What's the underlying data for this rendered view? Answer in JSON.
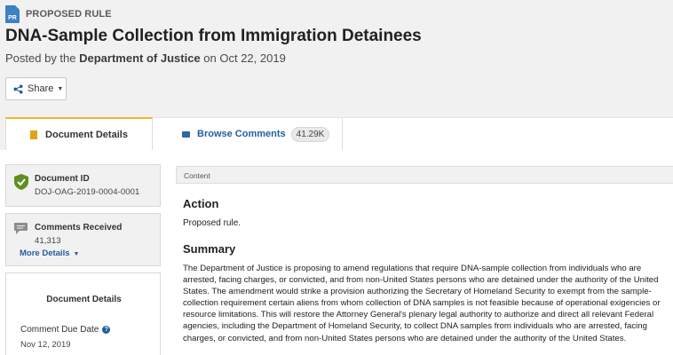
{
  "header": {
    "doc_type_icon_text": "PR",
    "doc_type": "PROPOSED RULE",
    "title": "DNA-Sample Collection from Immigration Detainees",
    "posted_prefix": "Posted by the",
    "agency": "Department of Justice",
    "posted_on": "on Oct 22, 2019",
    "share_label": "Share"
  },
  "tabs": {
    "details_label": "Document Details",
    "browse_label": "Browse Comments",
    "browse_count": "41.29K"
  },
  "sidebar": {
    "doc_id_title": "Document ID",
    "doc_id_value": "DOJ-OAG-2019-0004-0001",
    "comments_title": "Comments Received",
    "comments_value": "41,313",
    "more_details": "More Details",
    "details_box_title": "Document Details",
    "due_label": "Comment Due Date",
    "due_value": "Nov 12, 2019"
  },
  "content": {
    "header_label": "Content",
    "action_heading": "Action",
    "action_text": "Proposed rule.",
    "summary_heading": "Summary",
    "summary_text": "The Department of Justice is proposing to amend regulations that require DNA-sample collection from individuals who are arrested, facing charges, or convicted, and from non-United States persons who are detained under the authority of the United States. The amendment would strike a provision authorizing the Secretary of Homeland Security to exempt from the sample-collection requirement certain aliens from whom collection of DNA samples is not feasible because of operational exigencies or resource limitations. This will restore the Attorney General's plenary legal authority to authorize and direct all relevant Federal agencies, including the Department of Homeland Security, to collect DNA samples from individuals who are arrested, facing charges, or convicted, and from non-United States persons who are detained under the authority of the United States."
  },
  "colors": {
    "accent_tab": "#f3b629",
    "link_blue": "#235f9d",
    "check_green": "#5e8f1f",
    "pr_icon_blue": "#3f7fc4"
  }
}
